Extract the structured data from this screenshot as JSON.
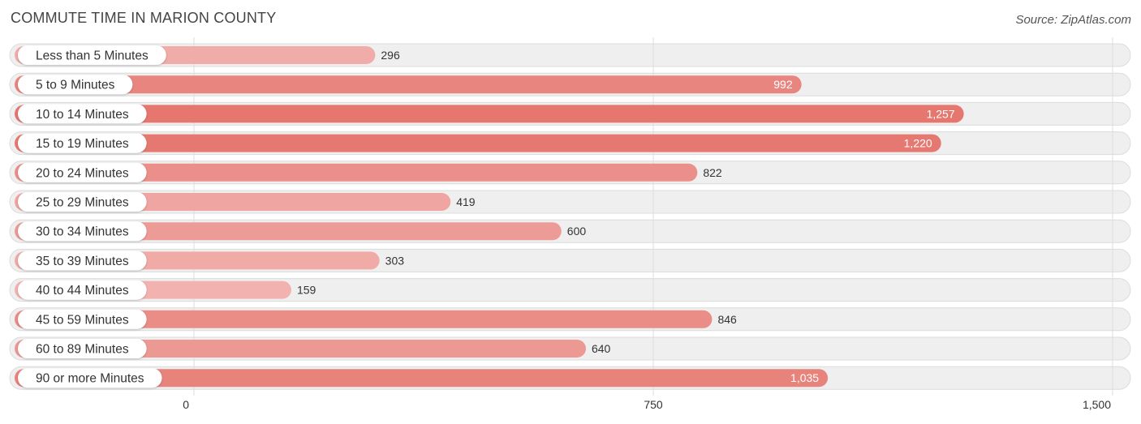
{
  "chart_data": {
    "type": "bar",
    "orientation": "horizontal",
    "title": "COMMUTE TIME IN MARION COUNTY",
    "source": "Source: ZipAtlas.com",
    "categories": [
      "Less than 5 Minutes",
      "5 to 9 Minutes",
      "10 to 14 Minutes",
      "15 to 19 Minutes",
      "20 to 24 Minutes",
      "25 to 29 Minutes",
      "30 to 34 Minutes",
      "35 to 39 Minutes",
      "40 to 44 Minutes",
      "45 to 59 Minutes",
      "60 to 89 Minutes",
      "90 or more Minutes"
    ],
    "values": [
      296,
      992,
      1257,
      1220,
      822,
      419,
      600,
      303,
      159,
      846,
      640,
      1035
    ],
    "value_labels": [
      "296",
      "992",
      "1,257",
      "1,220",
      "822",
      "419",
      "600",
      "303",
      "159",
      "846",
      "640",
      "1,035"
    ],
    "xlim": [
      0,
      1500
    ],
    "ticks": [
      0,
      750,
      1500
    ],
    "tick_labels": [
      "0",
      "750",
      "1,500"
    ],
    "grid": true,
    "xlabel": "",
    "ylabel": "",
    "colors": {
      "bar_low": "#f2b3b0",
      "bar_high": "#e5776f",
      "row_bg": "#efefef",
      "row_border": "#dcdcdc",
      "grid": "#dddddd",
      "value_inside": "#ffffff",
      "value_outside": "#333333"
    }
  }
}
